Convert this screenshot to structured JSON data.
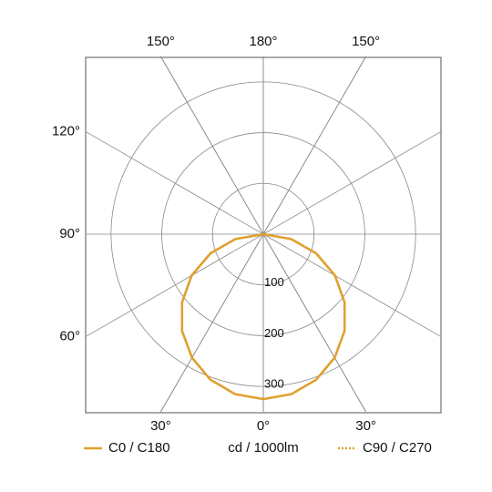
{
  "chart_data": {
    "type": "polar",
    "unit_label": "cd / 1000lm",
    "angles": [
      0,
      10,
      20,
      30,
      40,
      50,
      60,
      70,
      80,
      90
    ],
    "series": [
      {
        "name": "C0 / C180",
        "color": "#e0a02e",
        "dash": "solid",
        "values": [
          325,
          320,
          305,
          281,
          249,
          209,
          163,
          111,
          56,
          0
        ]
      },
      {
        "name": "C90 / C270",
        "color": "#e0a02e",
        "dash": "dotted",
        "values": [
          325,
          320,
          305,
          281,
          249,
          209,
          163,
          111,
          56,
          0
        ]
      }
    ],
    "rlim": [
      0,
      350
    ],
    "rticks": [
      100,
      200,
      300
    ],
    "angle_ticks": [
      {
        "value": -150,
        "label": "150°"
      },
      {
        "value": 180,
        "label": "180°"
      },
      {
        "value": 150,
        "label": "150°"
      },
      {
        "value": -120,
        "label": "120°"
      },
      {
        "value": -90,
        "label": "90°"
      },
      {
        "value": -60,
        "label": "60°"
      },
      {
        "value": -30,
        "label": "30°"
      },
      {
        "value": 0,
        "label": "0°"
      },
      {
        "value": 30,
        "label": "30°"
      }
    ],
    "grid": true
  }
}
